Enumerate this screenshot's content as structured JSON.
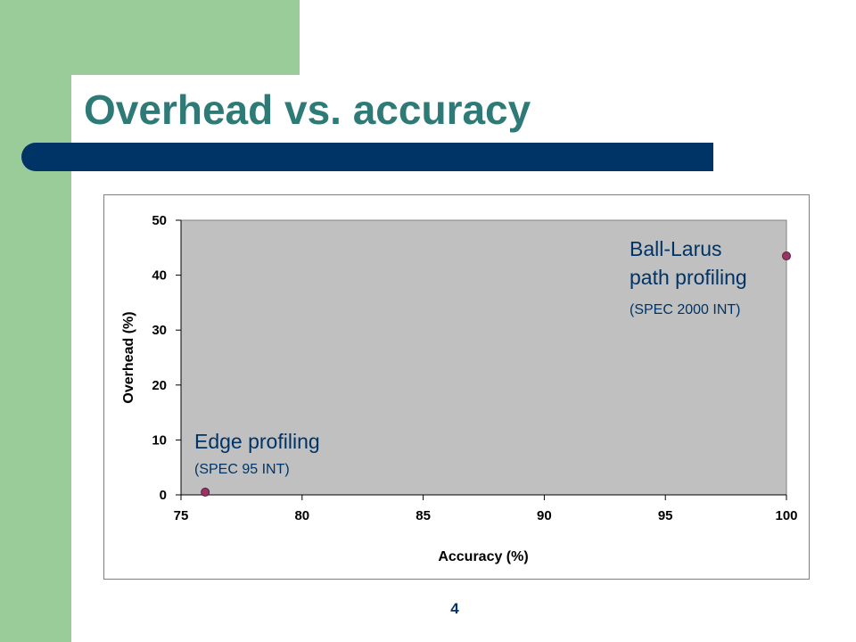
{
  "slide": {
    "title": "Overhead vs. accuracy",
    "page_number": "4",
    "colors": {
      "green": "#99cc99",
      "navy": "#003366",
      "title": "#2e7a76",
      "plot_bg": "#c0c0c0",
      "marker": "#993366"
    }
  },
  "chart_data": {
    "type": "scatter",
    "xlabel": "Accuracy (%)",
    "ylabel": "Overhead (%)",
    "xlim": [
      75,
      100
    ],
    "ylim": [
      0,
      50
    ],
    "x_ticks": [
      75,
      80,
      85,
      90,
      95,
      100
    ],
    "y_ticks": [
      0,
      10,
      20,
      30,
      40,
      50
    ],
    "grid": false,
    "series": [
      {
        "points": [
          {
            "x": 76,
            "y": 0.5
          },
          {
            "x": 100,
            "y": 43.5
          }
        ]
      }
    ],
    "annotations": [
      {
        "lines": [
          "Edge profiling",
          "(SPEC 95 INT)"
        ]
      },
      {
        "lines": [
          "Ball-Larus",
          "path profiling",
          "(SPEC 2000 INT)"
        ]
      }
    ]
  }
}
